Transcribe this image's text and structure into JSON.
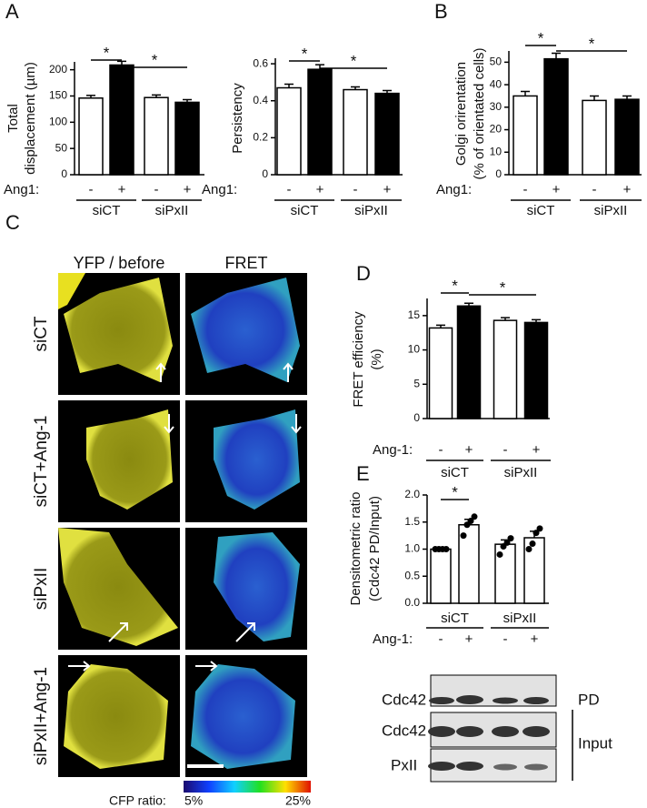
{
  "panel_labels": [
    "A",
    "B",
    "C",
    "D",
    "E"
  ],
  "chart_data": [
    {
      "type": "bar",
      "ylabel": [
        "Total",
        "displacement (µm)"
      ],
      "condition_label": "Ang1:",
      "categories": [
        "-",
        "+",
        "-",
        "+"
      ],
      "groups": [
        "siCT",
        "siPxII"
      ],
      "values": [
        146,
        209,
        147,
        138
      ],
      "errors": [
        5,
        7,
        5,
        5
      ],
      "colors": [
        "#ffffff",
        "#000000",
        "#ffffff",
        "#000000"
      ],
      "ylim": [
        0,
        215
      ],
      "yticks": [
        0,
        50,
        100,
        150,
        200
      ],
      "significance": [
        "*",
        "*"
      ]
    },
    {
      "type": "bar",
      "ylabel": [
        "Persistency"
      ],
      "condition_label": "Ang1:",
      "categories": [
        "-",
        "+",
        "-",
        "+"
      ],
      "groups": [
        "siCT",
        "siPxII"
      ],
      "values": [
        0.47,
        0.57,
        0.46,
        0.44
      ],
      "errors": [
        0.02,
        0.025,
        0.015,
        0.015
      ],
      "colors": [
        "#ffffff",
        "#000000",
        "#ffffff",
        "#000000"
      ],
      "ylim": [
        0,
        0.63
      ],
      "yticks": [
        0,
        0.2,
        0.4,
        0.6
      ],
      "significance": [
        "*",
        "*"
      ]
    },
    {
      "type": "bar",
      "ylabel": [
        "Golgi orirentation",
        "(% of orientated cells)"
      ],
      "condition_label": "Ang1:",
      "categories": [
        "-",
        "+",
        "-",
        "+"
      ],
      "groups": [
        "siCT",
        "siPxII"
      ],
      "values": [
        35,
        51.5,
        33,
        33.5
      ],
      "errors": [
        2,
        2.5,
        2,
        1.5
      ],
      "colors": [
        "#ffffff",
        "#000000",
        "#ffffff",
        "#000000"
      ],
      "ylim": [
        0,
        55
      ],
      "yticks": [
        0,
        10,
        20,
        30,
        40,
        50
      ],
      "significance": [
        "*",
        "*"
      ]
    },
    {
      "type": "bar",
      "ylabel": [
        "FRET efficiency",
        "(%)"
      ],
      "condition_label": "Ang-1:",
      "categories": [
        "-",
        "+",
        "-",
        "+"
      ],
      "groups": [
        "siCT",
        "siPxII"
      ],
      "values": [
        13.2,
        16.4,
        14.3,
        14.0
      ],
      "errors": [
        0.4,
        0.4,
        0.4,
        0.4
      ],
      "colors": [
        "#ffffff",
        "#000000",
        "#ffffff",
        "#000000"
      ],
      "ylim": [
        0,
        17.5
      ],
      "yticks": [
        0,
        5,
        10,
        15
      ],
      "significance": [
        "*",
        "*"
      ]
    },
    {
      "type": "bar",
      "ylabel": [
        "Densitometric ratio",
        "(Cdc42 PD/Input)"
      ],
      "condition_label": "Ang-1:",
      "categories": [
        "-",
        "+",
        "-",
        "+"
      ],
      "groups": [
        "siCT",
        "siPxII"
      ],
      "values": [
        1.0,
        1.45,
        1.09,
        1.21
      ],
      "errors": [
        0,
        0.1,
        0.08,
        0.12
      ],
      "points": [
        [
          1.0,
          1.0,
          1.0,
          1.0
        ],
        [
          1.25,
          1.45,
          1.52,
          1.6
        ],
        [
          0.9,
          1.05,
          1.12,
          1.2
        ],
        [
          1.0,
          1.1,
          1.3,
          1.38
        ]
      ],
      "colors": [
        "#ffffff",
        "#ffffff",
        "#ffffff",
        "#ffffff"
      ],
      "ylim": [
        0,
        2.0
      ],
      "yticks": [
        {
          "value": 0,
          "label": "0.0"
        },
        0.5,
        {
          "value": 1,
          "label": "1.0"
        },
        1.5,
        {
          "value": 2,
          "label": "2.0"
        }
      ],
      "significance": [
        "*"
      ]
    }
  ],
  "microscopy": {
    "columns": [
      "YFP / before",
      "FRET"
    ],
    "rows": [
      "siCT",
      "siCT+Ang-1",
      "siPxII",
      "siPxII+Ang-1"
    ],
    "colorbar": {
      "label": "CFP ratio:",
      "min": "5%",
      "max": "25%"
    }
  },
  "blot": {
    "rows": [
      "Cdc42",
      "Cdc42",
      "PxII"
    ],
    "groups": [
      "PD",
      "Input"
    ]
  }
}
